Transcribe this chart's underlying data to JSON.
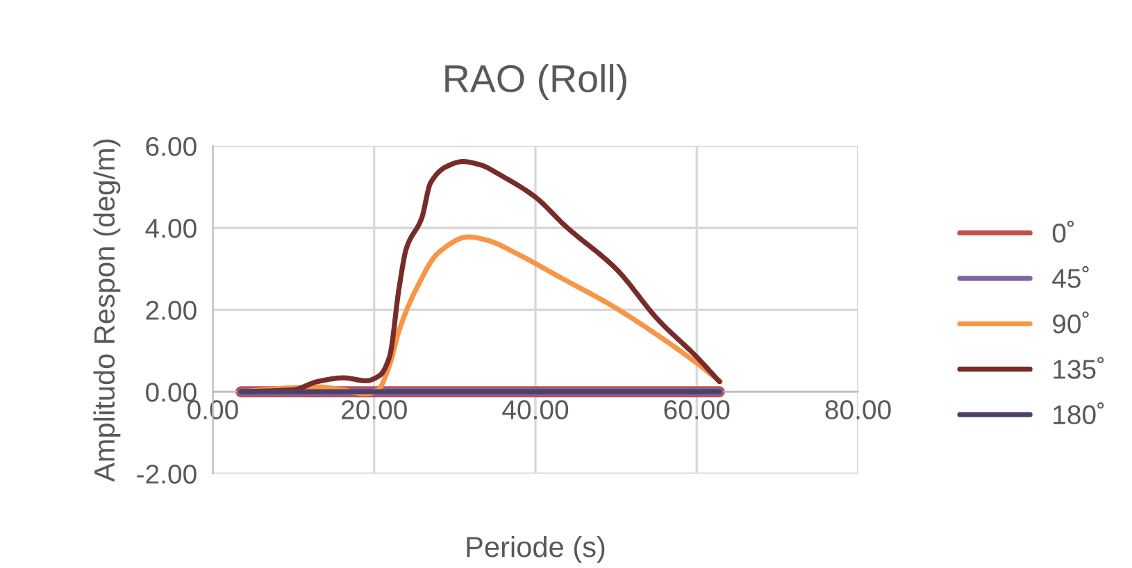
{
  "chart_data": {
    "type": "line",
    "title": "RAO (Roll)",
    "xlabel": "Periode (s)",
    "ylabel": "Amplitudo Respon (deg/m)",
    "xlim": [
      0,
      80
    ],
    "xticks": [
      {
        "value": 0,
        "label": "0.00"
      },
      {
        "value": 20,
        "label": "20.00"
      },
      {
        "value": 40,
        "label": "40.00"
      },
      {
        "value": 60,
        "label": "60.00"
      },
      {
        "value": 80,
        "label": "80.00"
      }
    ],
    "ylim": [
      -2,
      6
    ],
    "yticks": [
      {
        "value": -2,
        "label": "-2.00"
      },
      {
        "value": 0,
        "label": "0.00"
      },
      {
        "value": 2,
        "label": "2.00"
      },
      {
        "value": 4,
        "label": "4.00"
      },
      {
        "value": 6,
        "label": "6.00"
      }
    ],
    "grid": true,
    "legend": "right",
    "marker": "none",
    "line_style": "solid",
    "series": [
      {
        "name": "0˚",
        "color": "#c0504d",
        "x": [
          3.5,
          20,
          40,
          62.8
        ],
        "values": [
          0,
          0,
          0,
          0
        ]
      },
      {
        "name": "45˚",
        "color": "#8064a2",
        "x": [
          3.5,
          20,
          40,
          62.8
        ],
        "values": [
          0,
          0,
          0,
          0
        ]
      },
      {
        "name": "90˚",
        "color": "#f79646",
        "x": [
          3.5,
          10,
          13,
          16,
          19,
          20.5,
          21.9,
          23.1,
          25.3,
          28,
          31.7,
          34,
          37.9,
          43,
          49.5,
          55,
          60,
          62.9
        ],
        "values": [
          0,
          0.1,
          0.12,
          0.05,
          -0.05,
          0.05,
          0.64,
          1.5,
          2.54,
          3.4,
          3.78,
          3.7,
          3.35,
          2.8,
          2.1,
          1.4,
          0.7,
          0.25
        ]
      },
      {
        "name": "135˚",
        "color": "#772c2a",
        "x": [
          3.5,
          10,
          13,
          16.2,
          19,
          20.7,
          21.9,
          23.1,
          24,
          25.9,
          27,
          29,
          31,
          33,
          36,
          40,
          43.8,
          50,
          55.2,
          60,
          62.8
        ],
        "values": [
          0,
          0.05,
          0.25,
          0.34,
          0.27,
          0.4,
          0.85,
          2.54,
          3.5,
          4.24,
          5.1,
          5.5,
          5.62,
          5.55,
          5.25,
          4.75,
          4.03,
          3.0,
          1.76,
          0.85,
          0.25
        ]
      },
      {
        "name": "180˚",
        "color": "#4f3f66",
        "x": [
          3.5,
          20,
          40,
          62.8
        ],
        "values": [
          0,
          0,
          0,
          0
        ]
      }
    ]
  }
}
